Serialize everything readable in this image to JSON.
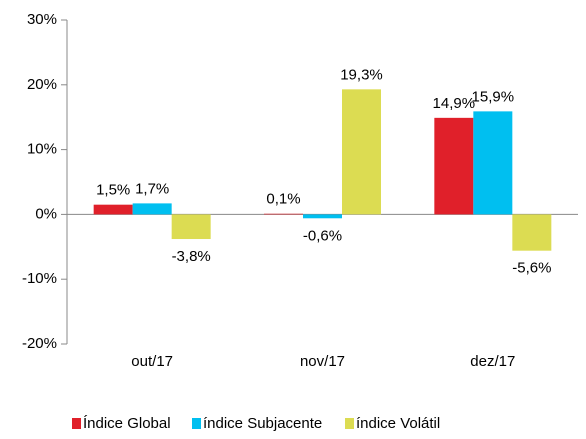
{
  "chart_data": {
    "type": "bar",
    "categories": [
      "out/17",
      "nov/17",
      "dez/17"
    ],
    "series": [
      {
        "name": "Índice Global",
        "color": "#e0202a",
        "values": [
          1.5,
          0.1,
          14.9
        ],
        "value_labels": [
          "1,5%",
          "0,1%",
          "14,9%"
        ]
      },
      {
        "name": "índice Subjacente",
        "color": "#00bff0",
        "values": [
          1.7,
          -0.6,
          15.9
        ],
        "value_labels": [
          "1,7%",
          "-0,6%",
          "15,9%"
        ]
      },
      {
        "name": "índice Volátil",
        "color": "#dcdc52",
        "values": [
          -3.8,
          19.3,
          -5.6
        ],
        "value_labels": [
          "-3,8%",
          "19,3%",
          "-5,6%"
        ]
      }
    ],
    "ylim": [
      -20,
      30
    ],
    "yticks": [
      {
        "value": -20,
        "label": "-20%"
      },
      {
        "value": -10,
        "label": "-10%"
      },
      {
        "value": 0,
        "label": "0%"
      },
      {
        "value": 10,
        "label": "10%"
      },
      {
        "value": 20,
        "label": "20%"
      },
      {
        "value": 30,
        "label": "30%"
      }
    ],
    "grid": false,
    "legend": "bottom"
  }
}
